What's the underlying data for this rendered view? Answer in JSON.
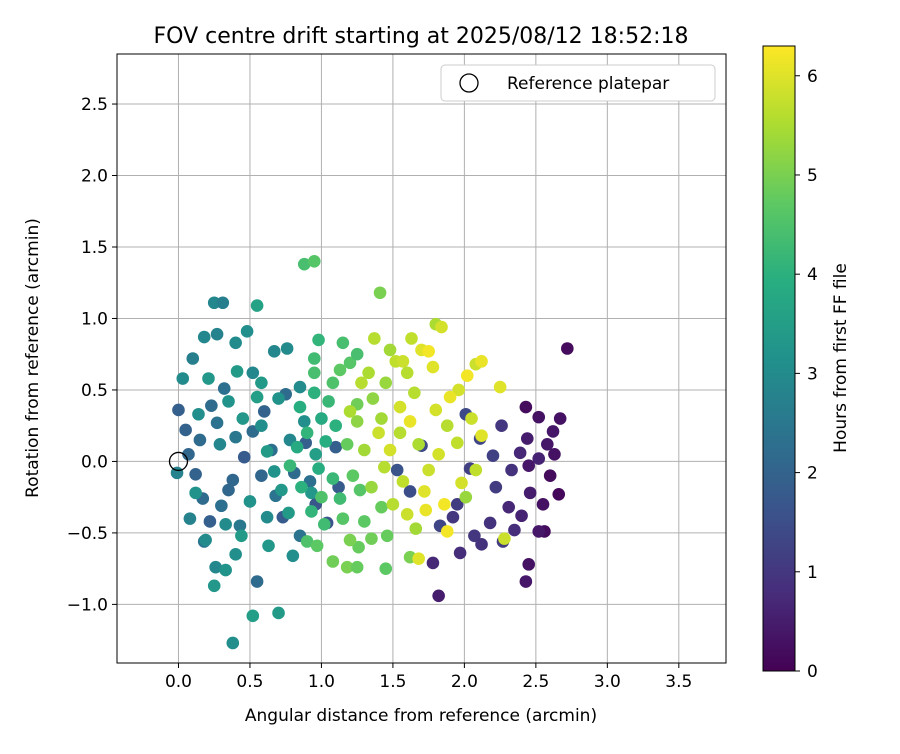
{
  "chart_data": {
    "type": "scatter",
    "title": "FOV centre drift starting at 2025/08/12 18:52:18",
    "xlabel": "Angular distance from reference (arcmin)",
    "ylabel": "Rotation from reference (arcmin)",
    "xlim": [
      -0.43,
      3.83
    ],
    "ylim": [
      -1.41,
      2.85
    ],
    "xticks": [
      0.0,
      0.5,
      1.0,
      1.5,
      2.0,
      2.5,
      3.0,
      3.5
    ],
    "xtick_labels": [
      "0.0",
      "0.5",
      "1.0",
      "1.5",
      "2.0",
      "2.5",
      "3.0",
      "3.5"
    ],
    "yticks": [
      -1.0,
      -0.5,
      0.0,
      0.5,
      1.0,
      1.5,
      2.0,
      2.5
    ],
    "ytick_labels": [
      "−1.0",
      "−0.5",
      "0.0",
      "0.5",
      "1.0",
      "1.5",
      "2.0",
      "2.5"
    ],
    "grid": true,
    "legend_position": "top-right",
    "legend": [
      {
        "label": "Reference platepar",
        "marker": "open-circle"
      }
    ],
    "reference_point": {
      "x": 0.0,
      "y": 0.0
    },
    "colorbar": {
      "label": "Hours from first FF file",
      "min": 0,
      "max": 6.3,
      "ticks": [
        0,
        1,
        2,
        3,
        4,
        5,
        6
      ],
      "tick_labels": [
        "0",
        "1",
        "2",
        "3",
        "4",
        "5",
        "6"
      ],
      "colormap": "viridis"
    },
    "points": [
      {
        "x": 2.72,
        "y": 0.79,
        "t": 0.2
      },
      {
        "x": 2.67,
        "y": 0.3,
        "t": 0.3
      },
      {
        "x": 2.62,
        "y": 0.21,
        "t": 0.4
      },
      {
        "x": 2.52,
        "y": 0.31,
        "t": 0.3
      },
      {
        "x": 2.43,
        "y": 0.38,
        "t": 0.2
      },
      {
        "x": 2.44,
        "y": 0.16,
        "t": 0.5
      },
      {
        "x": 2.58,
        "y": 0.12,
        "t": 0.4
      },
      {
        "x": 2.63,
        "y": 0.05,
        "t": 0.3
      },
      {
        "x": 2.52,
        "y": 0.02,
        "t": 0.6
      },
      {
        "x": 2.45,
        "y": -0.03,
        "t": 0.4
      },
      {
        "x": 2.6,
        "y": -0.1,
        "t": 0.2
      },
      {
        "x": 2.66,
        "y": -0.23,
        "t": 0.1
      },
      {
        "x": 2.55,
        "y": -0.3,
        "t": 0.3
      },
      {
        "x": 2.46,
        "y": -0.22,
        "t": 0.5
      },
      {
        "x": 2.4,
        "y": -0.38,
        "t": 0.6
      },
      {
        "x": 2.56,
        "y": -0.49,
        "t": 0.2
      },
      {
        "x": 2.52,
        "y": -0.49,
        "t": 0.4
      },
      {
        "x": 2.35,
        "y": -0.48,
        "t": 0.8
      },
      {
        "x": 2.45,
        "y": -0.72,
        "t": 0.3
      },
      {
        "x": 2.43,
        "y": -0.84,
        "t": 0.4
      },
      {
        "x": 1.82,
        "y": -0.94,
        "t": 0.5
      },
      {
        "x": 1.78,
        "y": -0.71,
        "t": 0.7
      },
      {
        "x": 1.97,
        "y": -0.64,
        "t": 0.8
      },
      {
        "x": 2.07,
        "y": -0.52,
        "t": 1.0
      },
      {
        "x": 2.18,
        "y": -0.43,
        "t": 0.9
      },
      {
        "x": 2.31,
        "y": -0.32,
        "t": 0.7
      },
      {
        "x": 2.22,
        "y": -0.18,
        "t": 1.1
      },
      {
        "x": 2.33,
        "y": -0.06,
        "t": 0.9
      },
      {
        "x": 2.39,
        "y": 0.06,
        "t": 0.7
      },
      {
        "x": 2.2,
        "y": 0.04,
        "t": 1.2
      },
      {
        "x": 2.26,
        "y": 0.25,
        "t": 1.0
      },
      {
        "x": 2.11,
        "y": 0.16,
        "t": 1.3
      },
      {
        "x": 2.04,
        "y": -0.05,
        "t": 1.2
      },
      {
        "x": 1.95,
        "y": -0.3,
        "t": 1.1
      },
      {
        "x": 1.83,
        "y": -0.45,
        "t": 1.3
      },
      {
        "x": 1.92,
        "y": -0.39,
        "t": 1.0
      },
      {
        "x": 2.12,
        "y": -0.58,
        "t": 0.9
      },
      {
        "x": 2.27,
        "y": -0.56,
        "t": 1.1
      },
      {
        "x": 2.01,
        "y": 0.33,
        "t": 1.4
      },
      {
        "x": 1.62,
        "y": -0.21,
        "t": 1.5
      },
      {
        "x": 1.53,
        "y": -0.06,
        "t": 1.6
      },
      {
        "x": 1.7,
        "y": 0.11,
        "t": 1.4
      },
      {
        "x": 0.0,
        "y": 0.36,
        "t": 1.9
      },
      {
        "x": 0.05,
        "y": 0.22,
        "t": 2.0
      },
      {
        "x": 0.07,
        "y": 0.05,
        "t": 2.1
      },
      {
        "x": 0.12,
        "y": -0.09,
        "t": 2.0
      },
      {
        "x": 0.17,
        "y": -0.26,
        "t": 2.2
      },
      {
        "x": 0.22,
        "y": -0.42,
        "t": 1.9
      },
      {
        "x": 0.3,
        "y": -0.31,
        "t": 2.3
      },
      {
        "x": 0.38,
        "y": -0.13,
        "t": 2.1
      },
      {
        "x": 0.46,
        "y": 0.03,
        "t": 1.8
      },
      {
        "x": 0.52,
        "y": 0.21,
        "t": 2.2
      },
      {
        "x": 0.6,
        "y": 0.35,
        "t": 2.0
      },
      {
        "x": 0.68,
        "y": -0.24,
        "t": 2.4
      },
      {
        "x": 0.73,
        "y": -0.39,
        "t": 1.8
      },
      {
        "x": 0.81,
        "y": -0.08,
        "t": 2.2
      },
      {
        "x": 0.89,
        "y": 0.13,
        "t": 1.9
      },
      {
        "x": 0.96,
        "y": -0.3,
        "t": 1.7
      },
      {
        "x": 1.04,
        "y": -0.43,
        "t": 1.6
      },
      {
        "x": 1.12,
        "y": -0.18,
        "t": 1.8
      },
      {
        "x": 0.55,
        "y": -0.84,
        "t": 2.2
      },
      {
        "x": 0.32,
        "y": 0.51,
        "t": 2.3
      },
      {
        "x": 0.23,
        "y": 0.39,
        "t": 2.2
      },
      {
        "x": 0.43,
        "y": -0.45,
        "t": 2.5
      },
      {
        "x": 0.15,
        "y": 0.15,
        "t": 2.2
      },
      {
        "x": 0.27,
        "y": 0.27,
        "t": 2.4
      },
      {
        "x": 0.58,
        "y": -0.1,
        "t": 2.1
      },
      {
        "x": 0.75,
        "y": 0.47,
        "t": 2.2
      },
      {
        "x": 0.85,
        "y": -0.52,
        "t": 2.4
      },
      {
        "x": 1.1,
        "y": 0.1,
        "t": 1.9
      },
      {
        "x": 0.65,
        "y": 0.08,
        "t": 2.3
      },
      {
        "x": 0.4,
        "y": 0.17,
        "t": 2.5
      },
      {
        "x": 0.18,
        "y": -0.56,
        "t": 2.4
      },
      {
        "x": 0.92,
        "y": -0.14,
        "t": 2.3
      },
      {
        "x": 0.35,
        "y": -0.2,
        "t": 2.1
      },
      {
        "x": -0.01,
        "y": -0.08,
        "t": 2.8
      },
      {
        "x": 0.03,
        "y": 0.58,
        "t": 3.0
      },
      {
        "x": 0.1,
        "y": 0.72,
        "t": 2.7
      },
      {
        "x": 0.18,
        "y": 0.87,
        "t": 2.9
      },
      {
        "x": 0.25,
        "y": 1.11,
        "t": 2.9
      },
      {
        "x": 0.31,
        "y": 1.11,
        "t": 2.7
      },
      {
        "x": 0.27,
        "y": 0.89,
        "t": 2.8
      },
      {
        "x": 0.4,
        "y": 0.83,
        "t": 3.0
      },
      {
        "x": 0.48,
        "y": 0.91,
        "t": 3.1
      },
      {
        "x": 0.52,
        "y": 0.62,
        "t": 2.9
      },
      {
        "x": 0.67,
        "y": 0.77,
        "t": 2.9
      },
      {
        "x": 0.76,
        "y": 0.79,
        "t": 3.0
      },
      {
        "x": 0.08,
        "y": -0.4,
        "t": 2.8
      },
      {
        "x": 0.19,
        "y": -0.55,
        "t": 3.0
      },
      {
        "x": 0.26,
        "y": -0.74,
        "t": 2.9
      },
      {
        "x": 0.33,
        "y": -0.76,
        "t": 3.2
      },
      {
        "x": 0.4,
        "y": -0.65,
        "t": 3.1
      },
      {
        "x": 0.25,
        "y": -0.87,
        "t": 3.3
      },
      {
        "x": 0.38,
        "y": -1.27,
        "t": 3.1
      },
      {
        "x": 0.52,
        "y": -1.08,
        "t": 3.5
      },
      {
        "x": 0.7,
        "y": -1.06,
        "t": 3.4
      },
      {
        "x": 0.55,
        "y": 1.09,
        "t": 3.6
      },
      {
        "x": 0.63,
        "y": -0.59,
        "t": 3.3
      },
      {
        "x": 0.8,
        "y": -0.66,
        "t": 3.1
      },
      {
        "x": 0.35,
        "y": 0.42,
        "t": 3.2
      },
      {
        "x": 0.45,
        "y": 0.3,
        "t": 3.3
      },
      {
        "x": 0.58,
        "y": 0.55,
        "t": 3.4
      },
      {
        "x": 0.7,
        "y": 0.44,
        "t": 3.2
      },
      {
        "x": 0.85,
        "y": 0.52,
        "t": 3.0
      },
      {
        "x": 0.21,
        "y": 0.58,
        "t": 3.3
      },
      {
        "x": 0.14,
        "y": 0.33,
        "t": 3.1
      },
      {
        "x": 0.29,
        "y": 0.12,
        "t": 2.9
      },
      {
        "x": 0.5,
        "y": -0.28,
        "t": 3.2
      },
      {
        "x": 0.62,
        "y": -0.39,
        "t": 3.0
      },
      {
        "x": 0.44,
        "y": -0.52,
        "t": 3.4
      },
      {
        "x": 0.72,
        "y": -0.2,
        "t": 3.3
      },
      {
        "x": 0.88,
        "y": 0.28,
        "t": 3.1
      },
      {
        "x": 0.96,
        "y": 0.05,
        "t": 3.5
      },
      {
        "x": 0.78,
        "y": 0.15,
        "t": 2.9
      },
      {
        "x": 0.67,
        "y": -0.07,
        "t": 3.2
      },
      {
        "x": 0.58,
        "y": 0.25,
        "t": 3.1
      },
      {
        "x": 0.12,
        "y": -0.22,
        "t": 3.2
      },
      {
        "x": 0.33,
        "y": -0.44,
        "t": 3.0
      },
      {
        "x": 0.55,
        "y": 0.45,
        "t": 3.5
      },
      {
        "x": 0.41,
        "y": 0.63,
        "t": 3.4
      },
      {
        "x": 0.62,
        "y": 0.07,
        "t": 3.4
      },
      {
        "x": 0.77,
        "y": -0.36,
        "t": 3.4
      },
      {
        "x": 0.93,
        "y": -0.22,
        "t": 3.3
      },
      {
        "x": 0.88,
        "y": 1.38,
        "t": 4.4
      },
      {
        "x": 0.95,
        "y": 1.4,
        "t": 4.6
      },
      {
        "x": 0.98,
        "y": 0.85,
        "t": 4.1
      },
      {
        "x": 0.95,
        "y": 0.72,
        "t": 4.3
      },
      {
        "x": 1.15,
        "y": 0.83,
        "t": 4.4
      },
      {
        "x": 1.2,
        "y": 0.69,
        "t": 4.6
      },
      {
        "x": 1.25,
        "y": 0.75,
        "t": 4.4
      },
      {
        "x": 1.13,
        "y": 0.64,
        "t": 4.7
      },
      {
        "x": 0.95,
        "y": 0.48,
        "t": 4.0
      },
      {
        "x": 1.05,
        "y": 0.42,
        "t": 4.2
      },
      {
        "x": 0.85,
        "y": 0.38,
        "t": 3.9
      },
      {
        "x": 1.0,
        "y": 0.3,
        "t": 3.8
      },
      {
        "x": 1.1,
        "y": 0.25,
        "t": 4.0
      },
      {
        "x": 0.9,
        "y": 0.2,
        "t": 4.1
      },
      {
        "x": 1.03,
        "y": 0.14,
        "t": 3.9
      },
      {
        "x": 0.83,
        "y": 0.1,
        "t": 3.8
      },
      {
        "x": 0.98,
        "y": -0.05,
        "t": 3.9
      },
      {
        "x": 1.08,
        "y": -0.12,
        "t": 4.2
      },
      {
        "x": 0.86,
        "y": -0.18,
        "t": 4.0
      },
      {
        "x": 1.13,
        "y": -0.26,
        "t": 4.3
      },
      {
        "x": 0.93,
        "y": -0.35,
        "t": 4.1
      },
      {
        "x": 1.02,
        "y": -0.44,
        "t": 4.3
      },
      {
        "x": 0.9,
        "y": -0.56,
        "t": 4.5
      },
      {
        "x": 0.97,
        "y": -0.59,
        "t": 4.7
      },
      {
        "x": 1.08,
        "y": -0.7,
        "t": 4.9
      },
      {
        "x": 1.18,
        "y": -0.74,
        "t": 5.0
      },
      {
        "x": 1.25,
        "y": -0.74,
        "t": 4.8
      },
      {
        "x": 1.45,
        "y": -0.75,
        "t": 4.7
      },
      {
        "x": 1.26,
        "y": -0.6,
        "t": 4.8
      },
      {
        "x": 1.2,
        "y": -0.55,
        "t": 5.0
      },
      {
        "x": 1.35,
        "y": -0.54,
        "t": 4.9
      },
      {
        "x": 1.46,
        "y": -0.52,
        "t": 4.8
      },
      {
        "x": 1.3,
        "y": -0.42,
        "t": 4.7
      },
      {
        "x": 1.41,
        "y": 1.18,
        "t": 5.0
      },
      {
        "x": 1.25,
        "y": 0.4,
        "t": 4.9
      },
      {
        "x": 1.18,
        "y": 0.12,
        "t": 4.8
      },
      {
        "x": 1.22,
        "y": -0.1,
        "t": 4.7
      },
      {
        "x": 1.27,
        "y": -0.2,
        "t": 4.6
      },
      {
        "x": 1.42,
        "y": -0.32,
        "t": 4.8
      },
      {
        "x": 1.62,
        "y": -0.67,
        "t": 5.0
      },
      {
        "x": 1.08,
        "y": 0.55,
        "t": 4.5
      },
      {
        "x": 0.95,
        "y": 0.62,
        "t": 4.4
      },
      {
        "x": 0.78,
        "y": -0.03,
        "t": 4.2
      },
      {
        "x": 1.0,
        "y": -0.25,
        "t": 4.5
      },
      {
        "x": 1.15,
        "y": -0.4,
        "t": 4.6
      },
      {
        "x": 1.8,
        "y": 0.96,
        "t": 5.5
      },
      {
        "x": 1.84,
        "y": 0.94,
        "t": 5.9
      },
      {
        "x": 1.63,
        "y": 0.86,
        "t": 5.7
      },
      {
        "x": 1.37,
        "y": 0.86,
        "t": 5.6
      },
      {
        "x": 1.48,
        "y": 0.78,
        "t": 5.4
      },
      {
        "x": 1.52,
        "y": 0.7,
        "t": 5.7
      },
      {
        "x": 1.57,
        "y": 0.7,
        "t": 5.8
      },
      {
        "x": 1.7,
        "y": 0.78,
        "t": 6.0
      },
      {
        "x": 1.75,
        "y": 0.77,
        "t": 6.2
      },
      {
        "x": 1.33,
        "y": 0.62,
        "t": 5.5
      },
      {
        "x": 1.45,
        "y": 0.55,
        "t": 5.3
      },
      {
        "x": 1.6,
        "y": 0.62,
        "t": 5.6
      },
      {
        "x": 1.78,
        "y": 0.66,
        "t": 6.0
      },
      {
        "x": 1.96,
        "y": 0.5,
        "t": 5.9
      },
      {
        "x": 2.08,
        "y": 0.68,
        "t": 5.8
      },
      {
        "x": 2.12,
        "y": 0.7,
        "t": 6.1
      },
      {
        "x": 2.02,
        "y": 0.6,
        "t": 6.2
      },
      {
        "x": 2.25,
        "y": 0.52,
        "t": 6.0
      },
      {
        "x": 1.9,
        "y": 0.45,
        "t": 6.1
      },
      {
        "x": 1.8,
        "y": 0.36,
        "t": 5.9
      },
      {
        "x": 1.88,
        "y": 0.25,
        "t": 5.6
      },
      {
        "x": 2.05,
        "y": 0.3,
        "t": 5.8
      },
      {
        "x": 2.12,
        "y": 0.18,
        "t": 6.0
      },
      {
        "x": 1.95,
        "y": 0.13,
        "t": 5.7
      },
      {
        "x": 1.82,
        "y": 0.05,
        "t": 5.9
      },
      {
        "x": 1.68,
        "y": 0.12,
        "t": 5.5
      },
      {
        "x": 1.55,
        "y": 0.2,
        "t": 5.6
      },
      {
        "x": 1.42,
        "y": 0.3,
        "t": 5.4
      },
      {
        "x": 1.36,
        "y": 0.44,
        "t": 5.2
      },
      {
        "x": 1.25,
        "y": 0.28,
        "t": 5.2
      },
      {
        "x": 1.3,
        "y": 0.08,
        "t": 5.4
      },
      {
        "x": 1.44,
        "y": -0.04,
        "t": 5.6
      },
      {
        "x": 1.57,
        "y": -0.14,
        "t": 5.7
      },
      {
        "x": 1.72,
        "y": -0.21,
        "t": 6.0
      },
      {
        "x": 1.86,
        "y": -0.3,
        "t": 6.2
      },
      {
        "x": 1.98,
        "y": -0.15,
        "t": 5.9
      },
      {
        "x": 2.08,
        "y": -0.06,
        "t": 5.7
      },
      {
        "x": 1.73,
        "y": -0.34,
        "t": 6.1
      },
      {
        "x": 1.6,
        "y": -0.37,
        "t": 5.8
      },
      {
        "x": 1.5,
        "y": -0.3,
        "t": 5.6
      },
      {
        "x": 1.88,
        "y": -0.49,
        "t": 6.2
      },
      {
        "x": 2.01,
        "y": -0.25,
        "t": 5.3
      },
      {
        "x": 1.66,
        "y": -0.47,
        "t": 5.4
      },
      {
        "x": 1.68,
        "y": -0.68,
        "t": 6.0
      },
      {
        "x": 2.28,
        "y": -0.54,
        "t": 5.8
      },
      {
        "x": 1.4,
        "y": 0.2,
        "t": 5.8
      },
      {
        "x": 1.55,
        "y": 0.38,
        "t": 5.9
      },
      {
        "x": 1.65,
        "y": 0.48,
        "t": 5.6
      },
      {
        "x": 1.75,
        "y": -0.06,
        "t": 5.8
      },
      {
        "x": 1.48,
        "y": 0.08,
        "t": 5.9
      },
      {
        "x": 1.35,
        "y": -0.18,
        "t": 5.3
      },
      {
        "x": 1.28,
        "y": 0.55,
        "t": 5.6
      },
      {
        "x": 1.2,
        "y": 0.35,
        "t": 5.5
      },
      {
        "x": 1.62,
        "y": 0.28,
        "t": 6.1
      }
    ]
  }
}
